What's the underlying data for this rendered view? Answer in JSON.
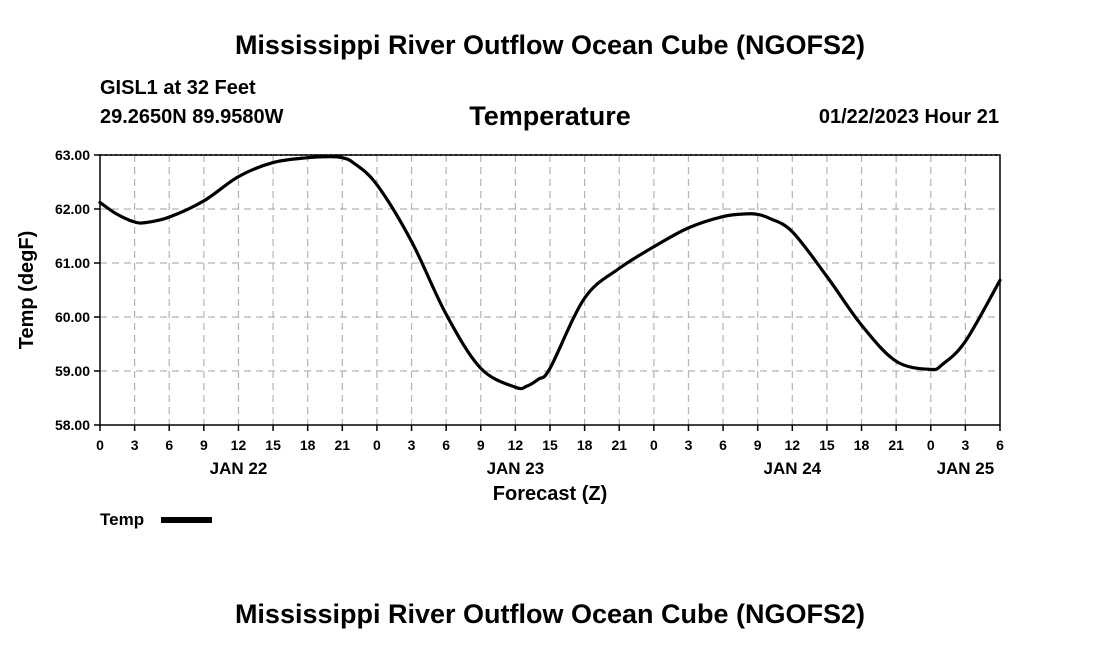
{
  "page": {
    "title": "Mississippi River Outflow Ocean Cube (NGOFS2)",
    "footer_title": "Mississippi River Outflow Ocean Cube (NGOFS2)",
    "station": "GISL1 at 32 Feet",
    "coords": "29.2650N  89.9580W",
    "variable": "Temperature",
    "run_time": "01/22/2023 Hour 21"
  },
  "chart_data": {
    "type": "line",
    "title": "Temperature",
    "xlabel": "Forecast (Z)",
    "ylabel": "Temp (degF)",
    "xlim": [
      0,
      78
    ],
    "ylim": [
      58,
      63
    ],
    "yticks": [
      "58.00",
      "59.00",
      "60.00",
      "61.00",
      "62.00",
      "63.00"
    ],
    "xtick_labels": [
      "0",
      "3",
      "6",
      "9",
      "12",
      "15",
      "18",
      "21",
      "0",
      "3",
      "6",
      "9",
      "12",
      "15",
      "18",
      "21",
      "0",
      "3",
      "6",
      "9",
      "12",
      "15",
      "18",
      "21",
      "0",
      "3",
      "6"
    ],
    "date_labels": [
      {
        "label": "JAN 22",
        "x": 12
      },
      {
        "label": "JAN 23",
        "x": 36
      },
      {
        "label": "JAN 24",
        "x": 60
      },
      {
        "label": "JAN 25",
        "x": 75
      }
    ],
    "grid": true,
    "legend": "bottom-left",
    "series": [
      {
        "name": "Temp",
        "color": "#000000",
        "x": [
          0,
          1.5,
          3,
          4,
          6,
          9,
          12,
          15,
          18,
          20,
          21,
          22,
          24,
          27,
          30,
          33,
          36,
          37,
          38,
          39,
          42,
          45,
          48,
          51,
          54,
          56,
          57,
          58,
          60,
          63,
          66,
          69,
          72,
          73,
          75,
          78
        ],
        "values": [
          62.12,
          61.9,
          61.76,
          61.75,
          61.85,
          62.15,
          62.6,
          62.86,
          62.95,
          62.97,
          62.95,
          62.85,
          62.45,
          61.4,
          60.05,
          59.05,
          58.7,
          58.72,
          58.85,
          59.05,
          60.35,
          60.9,
          61.3,
          61.65,
          61.86,
          61.91,
          61.9,
          61.83,
          61.58,
          60.75,
          59.85,
          59.18,
          59.03,
          59.12,
          59.55,
          60.68
        ]
      }
    ]
  }
}
